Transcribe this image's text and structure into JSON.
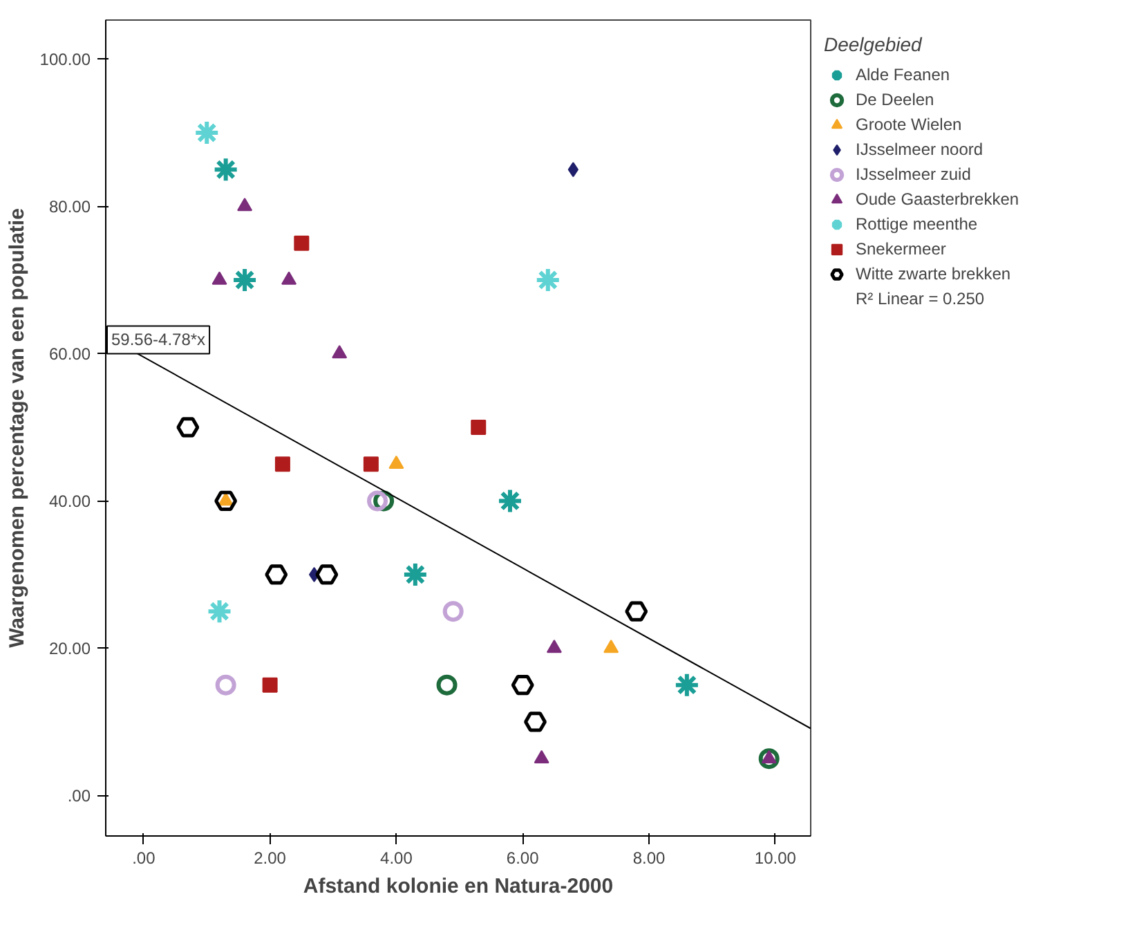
{
  "chart_data": {
    "type": "scatter",
    "xlabel": "Afstand kolonie en Natura-2000",
    "ylabel": "Waargenomen percentage van een populatie",
    "legend_title": "Deelgebied",
    "legend": "right",
    "grid": false,
    "xlim": [
      -0.6,
      10.56
    ],
    "ylim": [
      -5.5,
      105.3
    ],
    "xticks": [
      {
        "value": 0,
        "label": ".00"
      },
      {
        "value": 2,
        "label": "2.00"
      },
      {
        "value": 4,
        "label": "4.00"
      },
      {
        "value": 6,
        "label": "6.00"
      },
      {
        "value": 8,
        "label": "8.00"
      },
      {
        "value": 10,
        "label": "10.00"
      }
    ],
    "yticks": [
      {
        "value": 0,
        "label": ".00"
      },
      {
        "value": 20,
        "label": "20.00"
      },
      {
        "value": 40,
        "label": "40.00"
      },
      {
        "value": 60,
        "label": "60.00"
      },
      {
        "value": 80,
        "label": "80.00"
      },
      {
        "value": 100,
        "label": "100.00"
      }
    ],
    "annotations": [
      "59.56-4.78*x",
      "R² Linear = 0.250"
    ],
    "series": [
      {
        "name": "Alde Feanen",
        "color": "#1a9e96",
        "marker": "cross",
        "x": [
          1.3,
          1.6,
          5.8,
          4.3,
          8.6
        ],
        "values": [
          85,
          70,
          40,
          30,
          15
        ]
      },
      {
        "name": "De Deelen",
        "color": "#1e6b3c",
        "marker": "circle",
        "x": [
          3.8,
          4.8,
          9.9
        ],
        "values": [
          40,
          15,
          5
        ]
      },
      {
        "name": "Groote Wielen",
        "color": "#f5a623",
        "marker": "triangle",
        "x": [
          1.3,
          4.0,
          7.4
        ],
        "values": [
          40,
          45,
          20
        ]
      },
      {
        "name": "IJsselmeer noord",
        "color": "#1f1f6b",
        "marker": "diamond",
        "x": [
          6.8,
          2.7
        ],
        "values": [
          85,
          30
        ]
      },
      {
        "name": "IJsselmeer zuid",
        "color": "#c3a3d6",
        "marker": "circle",
        "x": [
          1.3,
          3.7,
          4.9
        ],
        "values": [
          15,
          40,
          25
        ]
      },
      {
        "name": "Oude Gaasterbrekken",
        "color": "#7b2d7b",
        "marker": "triangle",
        "x": [
          1.6,
          1.2,
          2.3,
          3.1,
          6.5,
          6.3,
          9.9
        ],
        "values": [
          80,
          70,
          70,
          60,
          20,
          5,
          5
        ]
      },
      {
        "name": "Rottige meenthe",
        "color": "#5fd3d3",
        "marker": "cross",
        "x": [
          1.0,
          6.4,
          1.2
        ],
        "values": [
          90,
          70,
          25
        ]
      },
      {
        "name": "Snekermeer",
        "color": "#b01c1c",
        "marker": "square",
        "x": [
          2.5,
          2.2,
          3.6,
          5.3,
          2.0
        ],
        "values": [
          75,
          45,
          45,
          50,
          15
        ]
      },
      {
        "name": "Witte zwarte brekken",
        "color": "#000000",
        "x": [
          0.7,
          1.3,
          2.1,
          2.9,
          7.8,
          6.0,
          6.2
        ],
        "values": [
          50,
          40,
          30,
          30,
          25,
          15,
          10
        ]
      },
      {
        "type": "line",
        "color": "#000000",
        "x": [
          -0.6,
          10.56
        ],
        "values": [
          62.4,
          9.1
        ]
      }
    ]
  }
}
